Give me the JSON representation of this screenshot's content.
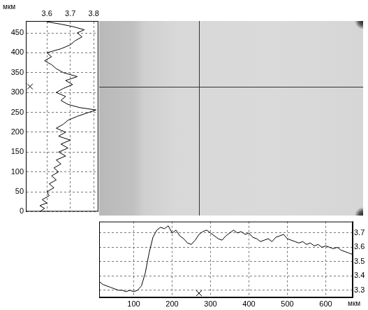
{
  "chart_data": [
    {
      "type": "line",
      "ylabel": "мкм",
      "color": "#000000",
      "grid": true,
      "y": [
        0,
        8,
        15,
        22,
        30,
        40,
        50,
        60,
        70,
        80,
        90,
        100,
        110,
        120,
        130,
        140,
        150,
        160,
        170,
        180,
        190,
        200,
        210,
        220,
        230,
        240,
        250,
        256,
        262,
        270,
        280,
        290,
        300,
        310,
        320,
        330,
        340,
        350,
        360,
        370,
        380,
        390,
        400,
        410,
        420,
        430,
        440,
        450,
        458,
        466,
        472,
        478
      ],
      "values": [
        3.57,
        3.59,
        3.57,
        3.6,
        3.58,
        3.61,
        3.6,
        3.63,
        3.61,
        3.64,
        3.62,
        3.65,
        3.63,
        3.66,
        3.64,
        3.68,
        3.65,
        3.69,
        3.66,
        3.7,
        3.65,
        3.68,
        3.64,
        3.67,
        3.69,
        3.73,
        3.78,
        3.81,
        3.74,
        3.69,
        3.66,
        3.68,
        3.64,
        3.67,
        3.71,
        3.68,
        3.73,
        3.67,
        3.64,
        3.62,
        3.59,
        3.62,
        3.6,
        3.66,
        3.7,
        3.72,
        3.75,
        3.73,
        3.76,
        3.71,
        3.66,
        3.6
      ],
      "xlim": [
        3.51,
        3.82
      ],
      "xticks": [
        3.6,
        3.7,
        3.8
      ],
      "ylim": [
        0,
        480
      ],
      "yticks": [
        0,
        50,
        100,
        150,
        200,
        250,
        300,
        350,
        400,
        450
      ],
      "cursor": 315
    },
    {
      "type": "line",
      "xlabel": "мкм",
      "color": "#000000",
      "grid": true,
      "x": [
        10,
        20,
        30,
        40,
        50,
        60,
        70,
        80,
        90,
        100,
        110,
        120,
        130,
        140,
        150,
        160,
        170,
        180,
        190,
        200,
        210,
        220,
        230,
        240,
        250,
        260,
        270,
        280,
        290,
        300,
        310,
        320,
        330,
        340,
        350,
        360,
        370,
        380,
        390,
        400,
        410,
        420,
        430,
        440,
        450,
        460,
        470,
        480,
        490,
        500,
        510,
        520,
        530,
        540,
        550,
        560,
        570,
        580,
        590,
        600,
        610,
        620,
        630,
        640,
        650,
        660,
        670
      ],
      "values": [
        3.36,
        3.34,
        3.33,
        3.32,
        3.31,
        3.3,
        3.3,
        3.29,
        3.3,
        3.29,
        3.3,
        3.33,
        3.42,
        3.56,
        3.67,
        3.72,
        3.74,
        3.73,
        3.75,
        3.7,
        3.72,
        3.68,
        3.66,
        3.63,
        3.62,
        3.65,
        3.69,
        3.71,
        3.72,
        3.7,
        3.68,
        3.66,
        3.65,
        3.68,
        3.7,
        3.72,
        3.7,
        3.71,
        3.69,
        3.7,
        3.67,
        3.66,
        3.64,
        3.65,
        3.66,
        3.64,
        3.67,
        3.68,
        3.69,
        3.66,
        3.65,
        3.64,
        3.63,
        3.64,
        3.62,
        3.63,
        3.61,
        3.62,
        3.6,
        3.61,
        3.6,
        3.59,
        3.6,
        3.58,
        3.57,
        3.56,
        3.55
      ],
      "xlim": [
        10,
        670
      ],
      "xticks": [
        100,
        200,
        300,
        400,
        500,
        600
      ],
      "ylim": [
        3.25,
        3.78
      ],
      "yticks": [
        3.3,
        3.4,
        3.5,
        3.6,
        3.7
      ],
      "cursor": 270
    }
  ]
}
